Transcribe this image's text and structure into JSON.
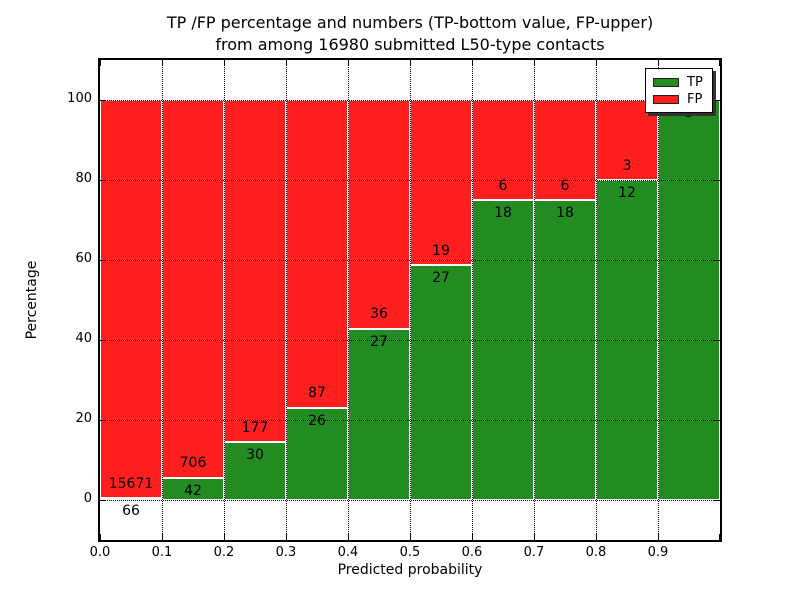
{
  "title": {
    "line1": "TP /FP percentage and numbers (TP-bottom value, FP-upper)",
    "line2": "from among 16980 submitted L50-type contacts"
  },
  "axes": {
    "xlabel": "Predicted probability",
    "ylabel": "Percentage",
    "x_ticks": [
      "0.0",
      "0.1",
      "0.2",
      "0.3",
      "0.4",
      "0.5",
      "0.6",
      "0.7",
      "0.8",
      "0.9"
    ],
    "y_ticks": [
      "0",
      "20",
      "40",
      "60",
      "80",
      "100"
    ]
  },
  "legend": {
    "items": [
      {
        "label": "TP",
        "color": "#228b22"
      },
      {
        "label": "FP",
        "color": "#ff1f1f"
      }
    ]
  },
  "colors": {
    "tp": "#228b22",
    "fp": "#ff1f1f",
    "bar_edge": "#ffffff",
    "grid": "#000000"
  },
  "chart_data": {
    "type": "bar",
    "stacked": true,
    "title": "TP /FP percentage and numbers (TP-bottom value, FP-upper) from among 16980 submitted L50-type contacts",
    "xlabel": "Predicted probability",
    "ylabel": "Percentage",
    "xlim": [
      0.0,
      1.0
    ],
    "ylim": [
      -10,
      110
    ],
    "grid": "dotted black, drawn above bars",
    "legend_position": "upper right",
    "total_contacts": 16980,
    "bins": [
      "0.0-0.1",
      "0.1-0.2",
      "0.2-0.3",
      "0.3-0.4",
      "0.4-0.5",
      "0.5-0.6",
      "0.6-0.7",
      "0.7-0.8",
      "0.8-0.9",
      "0.9-1.0"
    ],
    "bin_start": [
      0.0,
      0.1,
      0.2,
      0.3,
      0.4,
      0.5,
      0.6,
      0.7,
      0.8,
      0.9
    ],
    "bar_width": 0.1,
    "series": [
      {
        "name": "TP",
        "counts": [
          66,
          42,
          30,
          26,
          27,
          27,
          18,
          18,
          12,
          3
        ],
        "percent": [
          0.419,
          5.615,
          14.493,
          23.009,
          42.857,
          58.696,
          75.0,
          75.0,
          80.0,
          100.0
        ]
      },
      {
        "name": "FP",
        "counts": [
          15671,
          706,
          177,
          87,
          36,
          19,
          6,
          6,
          3,
          0
        ],
        "percent": [
          99.581,
          94.385,
          85.507,
          76.991,
          57.143,
          41.304,
          25.0,
          25.0,
          20.0,
          0.0
        ]
      }
    ]
  }
}
